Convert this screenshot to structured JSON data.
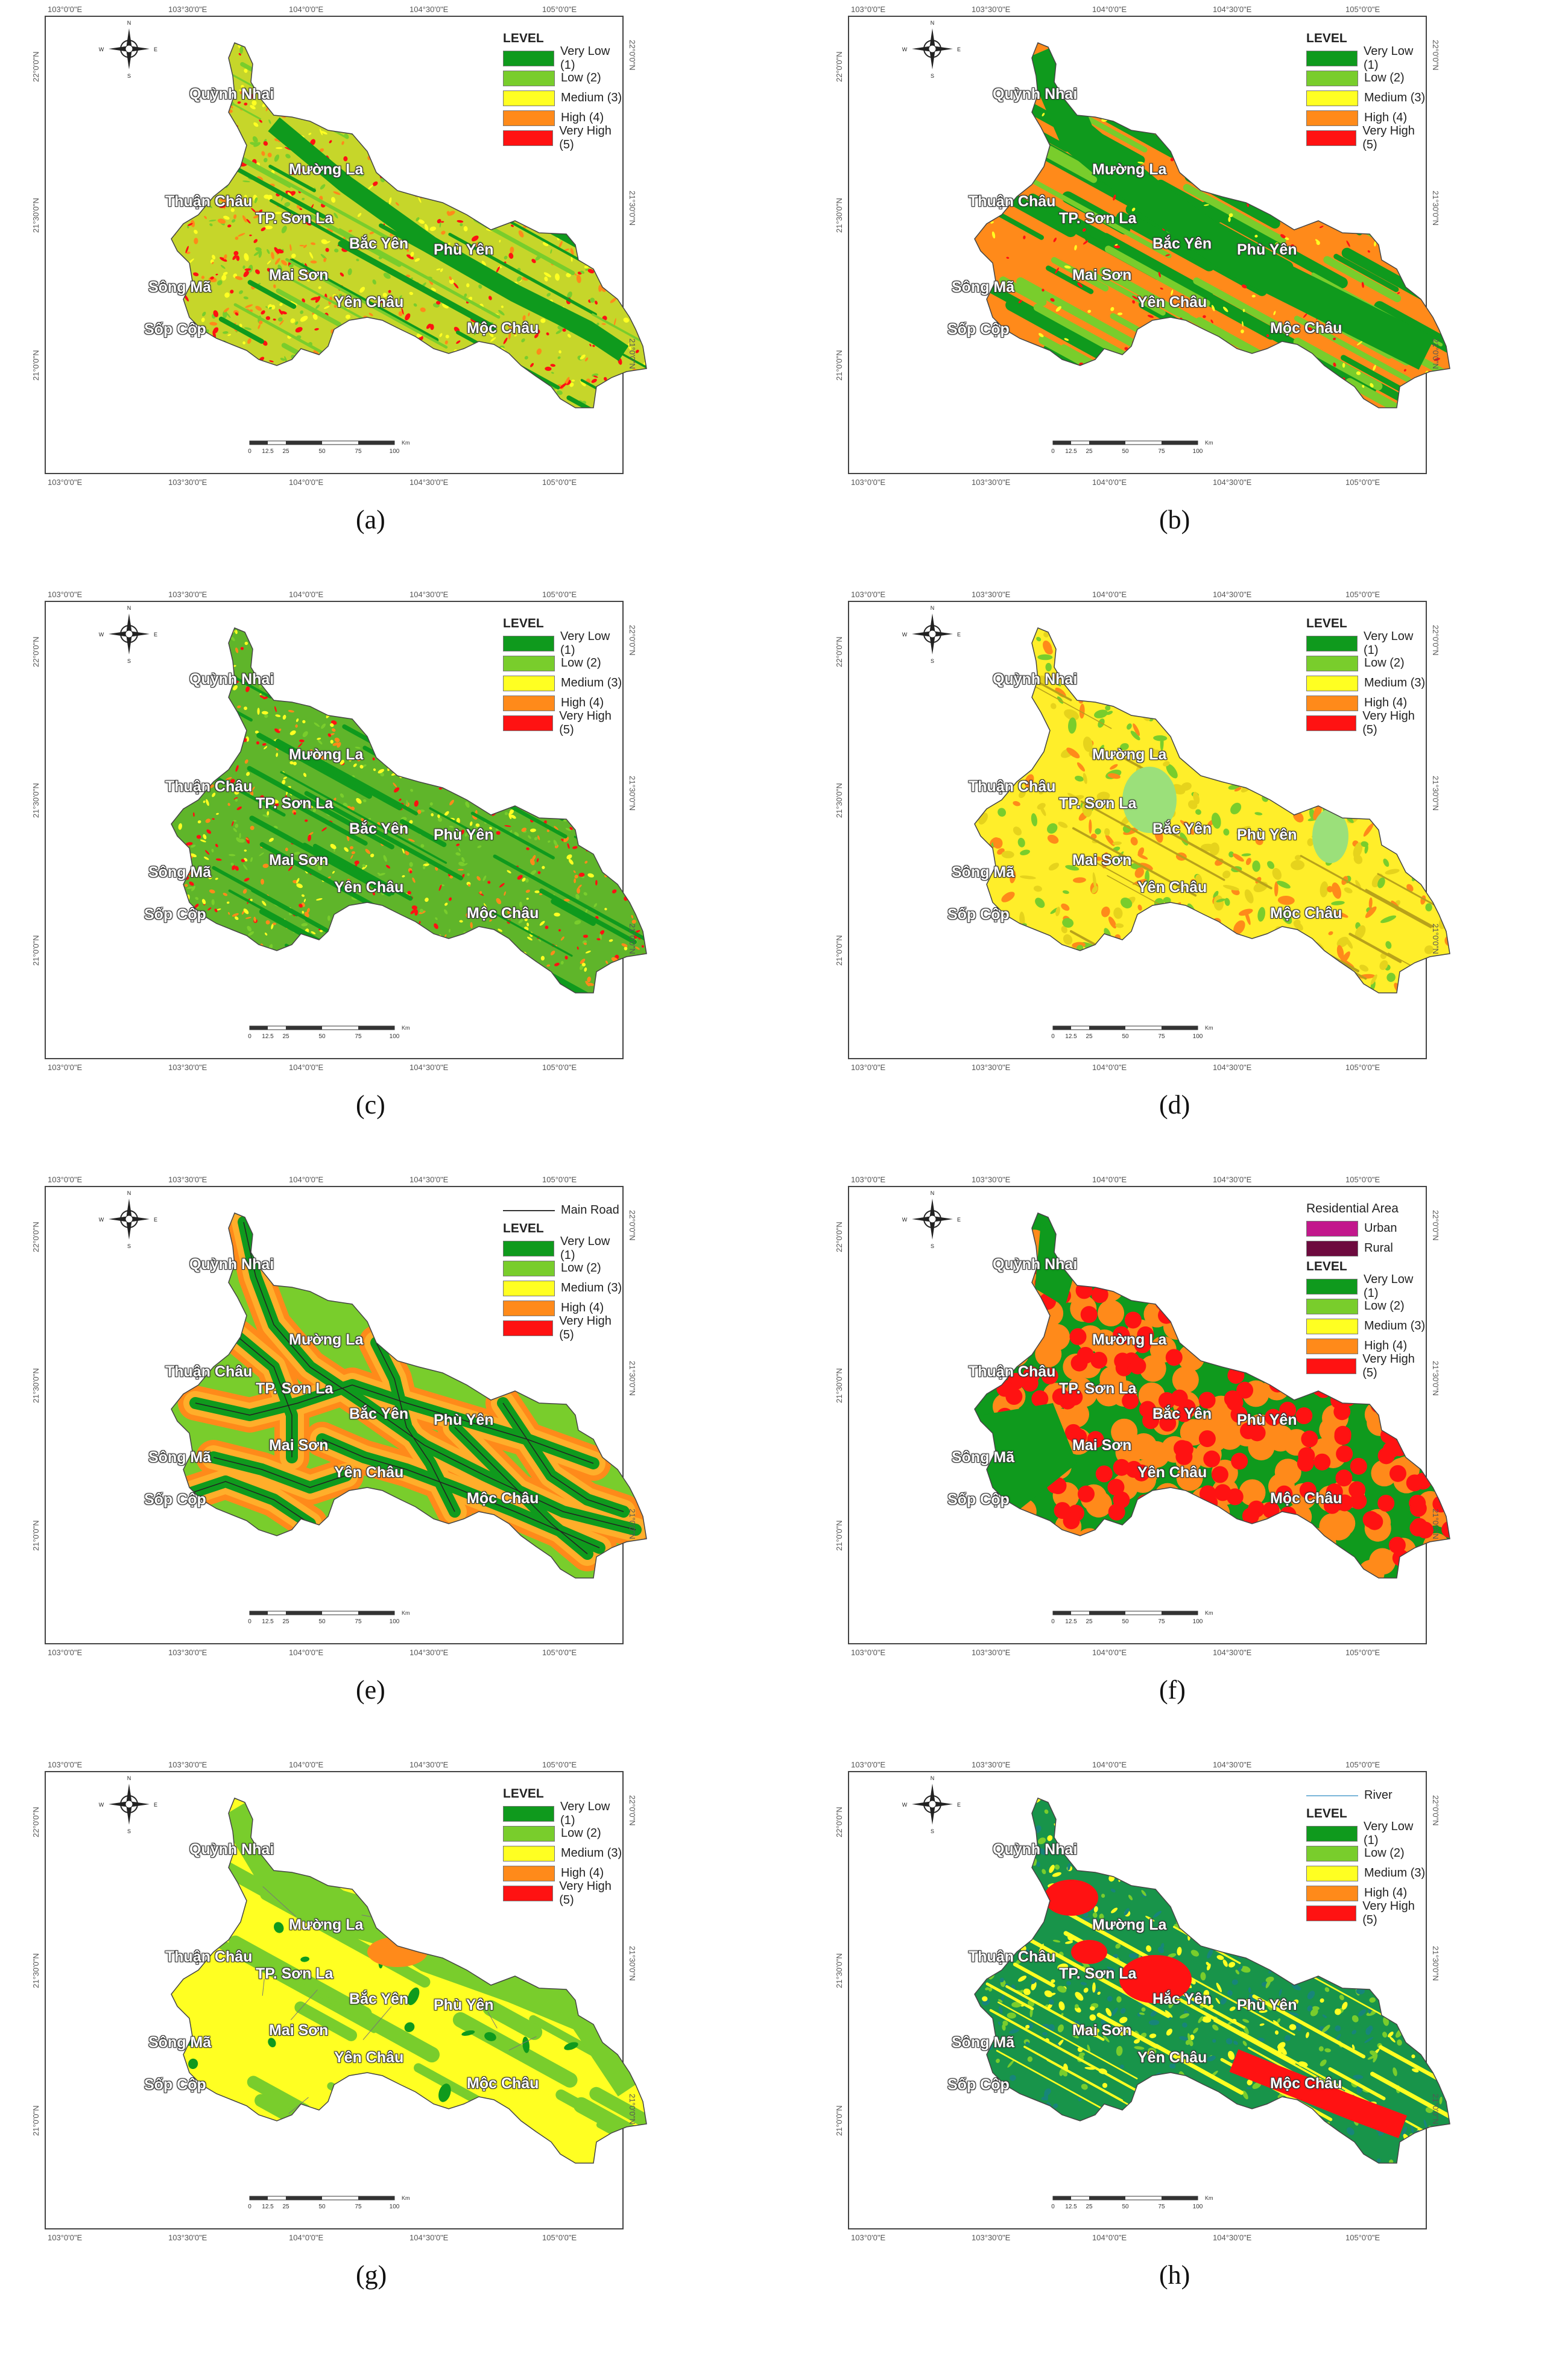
{
  "legend": {
    "level_title": "LEVEL",
    "levels": [
      {
        "label": "Very Low (1)",
        "color": "#0f9a1d"
      },
      {
        "label": "Low (2)",
        "color": "#79cd2c"
      },
      {
        "label": "Medium (3)",
        "color": "#ffff22"
      },
      {
        "label": "High (4)",
        "color": "#ff8a1a"
      },
      {
        "label": "Very High (5)",
        "color": "#ff1212"
      }
    ],
    "main_road": "Main Road",
    "residential_title": "Residential Area",
    "urban": {
      "label": "Urban",
      "color": "#c2188c"
    },
    "rural": {
      "label": "Rural",
      "color": "#6d0a3e"
    },
    "river": "River"
  },
  "towns": [
    "Quỳnh Nhai",
    "Mường La",
    "Thuận Châu",
    "TP. Sơn La",
    "Bắc Yên",
    "Phù Yên",
    "Sông Mã",
    "Mai Sơn",
    "Yên Châu",
    "Sốp Cộp",
    "Mộc Châu"
  ],
  "town_h": "Hắc Yên",
  "coords": {
    "top": [
      "103°0'0\"E",
      "103°30'0\"E",
      "104°0'0\"E",
      "104°30'0\"E",
      "105°0'0\"E"
    ],
    "bottom": [
      "103°0'0\"E",
      "103°30'0\"E",
      "104°0'0\"E",
      "104°30'0\"E",
      "105°0'0\"E"
    ],
    "left": [
      "22°0'0\"N",
      "21°30'0\"N",
      "21°0'0\"N"
    ],
    "right": [
      "22°0'0\"N",
      "21°30'0\"N",
      "21°0'0\"N"
    ]
  },
  "scale": {
    "ticks": [
      "0",
      "12.5",
      "25",
      "50",
      "75",
      "100"
    ],
    "unit": "Km"
  },
  "compass_letters": [
    "N",
    "E",
    "S",
    "W"
  ],
  "captions": [
    "(a)",
    "(b)",
    "(c)",
    "(d)",
    "(e)",
    "(f)",
    "(g)",
    "(h)"
  ]
}
